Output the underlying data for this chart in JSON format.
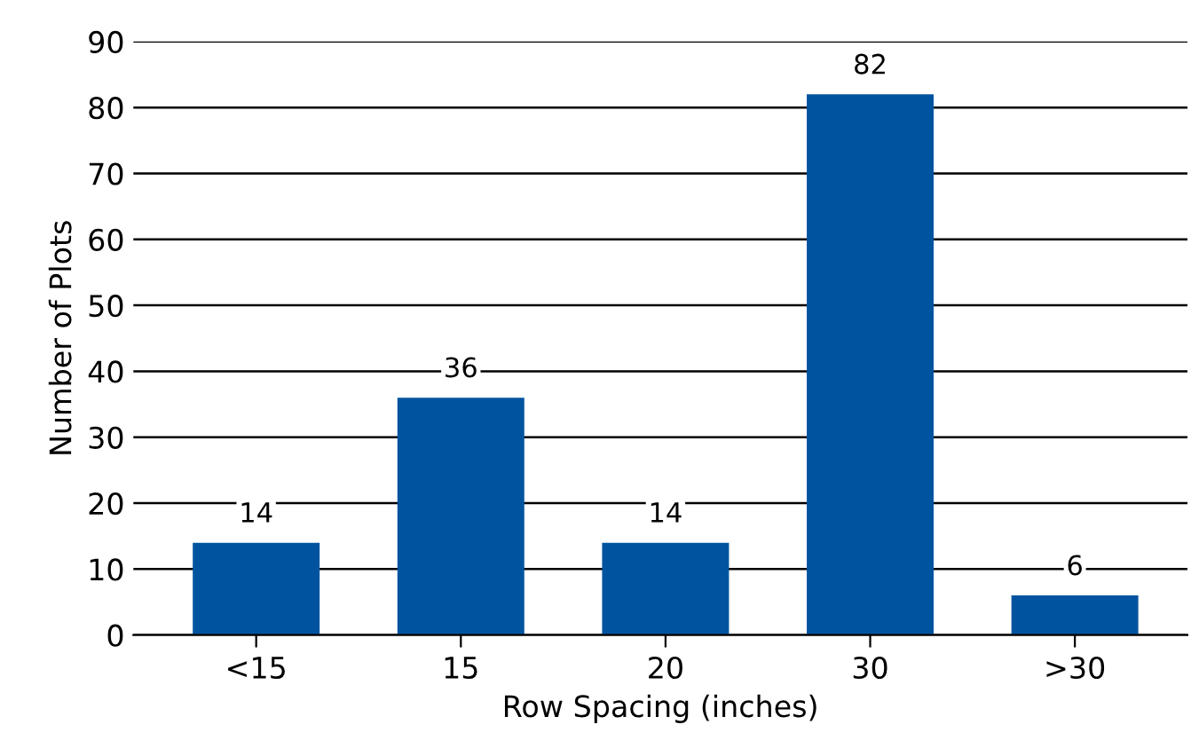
{
  "chart_data": {
    "type": "bar",
    "categories": [
      "<15",
      "15",
      "20",
      "30",
      ">30"
    ],
    "values": [
      14,
      36,
      14,
      82,
      6
    ],
    "color": "#00549f",
    "xlabel": "Row Spacing (inches)",
    "ylabel": "Number of Plots",
    "ylim": [
      0,
      90
    ],
    "yticks": [
      0,
      10,
      20,
      30,
      40,
      50,
      60,
      70,
      80,
      90
    ],
    "grid": "y",
    "data_labels": true
  }
}
